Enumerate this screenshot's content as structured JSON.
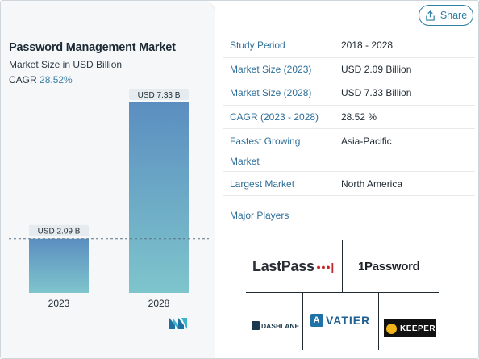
{
  "share": {
    "label": "Share",
    "icon": "share-icon"
  },
  "chart_header": {
    "title": "Password Management Market",
    "subtitle": "Market Size in USD Billion",
    "cagr_label": "CAGR",
    "cagr_value": "28.52%"
  },
  "chart_data": {
    "type": "bar",
    "categories": [
      "2023",
      "2028"
    ],
    "values": [
      2.09,
      7.33
    ],
    "data_labels": [
      "USD 2.09 B",
      "USD 7.33 B"
    ],
    "title": "Password Management Market",
    "subtitle": "Market Size in USD Billion",
    "xlabel": "",
    "ylabel": "",
    "ylim": [
      0,
      7.33
    ],
    "grid": false,
    "reference_line": "dashed line at 2023 value",
    "colors": {
      "bar_top": "#5b8ec0",
      "bar_bottom": "#7ec5cc",
      "label_bg": "#e6ebef"
    }
  },
  "info": {
    "rows": [
      {
        "key": "Study Period",
        "value": "2018 - 2028"
      },
      {
        "key": "Market Size (2023)",
        "value": "USD 2.09 Billion"
      },
      {
        "key": "Market Size (2028)",
        "value": "USD 7.33 Billion"
      },
      {
        "key": "CAGR (2023 - 2028)",
        "value": "28.52 %"
      },
      {
        "key": "Fastest Growing Market",
        "value": "Asia-Pacific"
      },
      {
        "key": "Largest Market",
        "value": "North America"
      }
    ],
    "players_label": "Major Players"
  },
  "players": {
    "lastpass": "LastPass",
    "lastpass_dots": "•••|",
    "onepassword": "1Password",
    "dashlane": "DASHLANE",
    "avatier": "VATIER",
    "avatier_mark": "A",
    "keeper": "KEEPER"
  },
  "colors": {
    "accent": "#2f7ea3",
    "key_text": "#2f6f9a"
  }
}
